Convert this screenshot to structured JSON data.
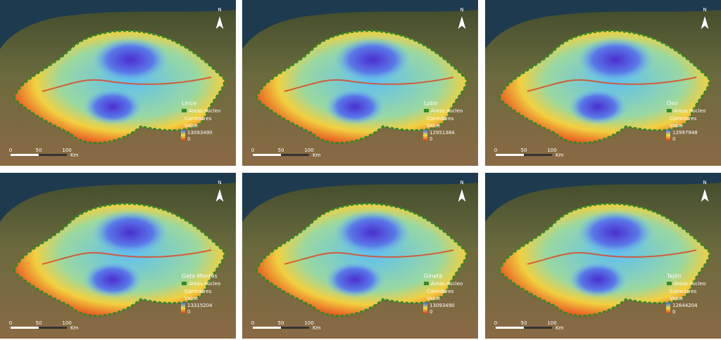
{
  "panels": [
    {
      "species": "Lince",
      "max": 13093490
    },
    {
      "species": "Lobo",
      "max": 12951384
    },
    {
      "species": "Oso",
      "max": 12997948
    },
    {
      "species": "Gato Montés",
      "max": 13315204
    },
    {
      "species": "Gineta",
      "max": 13093490
    },
    {
      "species": "Tejón",
      "max": 12644204
    }
  ],
  "legend": {
    "core": "Áreas núcleo",
    "corridors": "Corredores",
    "value": "Value",
    "min": 0
  },
  "scale": {
    "ticks": [
      0,
      50,
      100
    ],
    "unit": "Km"
  },
  "north": "N"
}
